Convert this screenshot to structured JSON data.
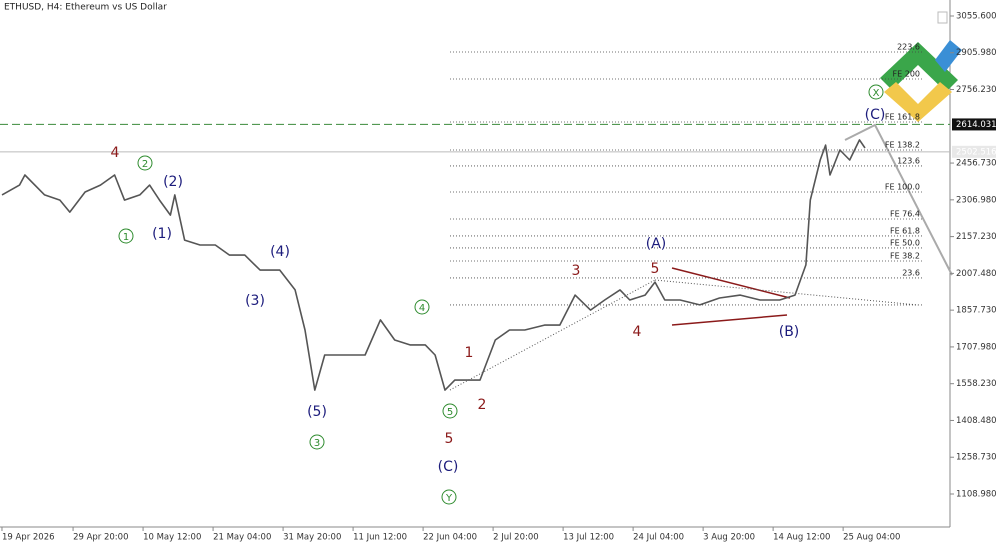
{
  "chart_data": {
    "type": "line",
    "title": "ETHUSD, H4:  Ethereum vs US Dollar",
    "x": [
      0,
      16,
      21,
      39,
      53,
      62,
      76,
      90,
      103,
      112,
      126,
      135,
      144,
      154,
      158,
      167,
      181,
      195,
      208,
      222,
      236,
      254,
      268,
      277,
      286,
      295,
      314,
      332,
      346,
      359,
      373,
      387,
      396,
      405,
      414,
      428,
      437,
      451,
      464,
      478,
      496,
      510,
      524,
      538,
      551,
      565,
      574,
      588,
      597,
      606,
      620,
      638,
      656,
      675,
      693,
      711,
      725,
      735,
      739,
      748,
      753,
      757,
      766,
      775,
      784,
      789
    ],
    "values": [
      2327,
      2367,
      2408,
      2327,
      2306,
      2257,
      2339,
      2367,
      2408,
      2306,
      2327,
      2367,
      2306,
      2245,
      2327,
      2143,
      2123,
      2123,
      2082,
      2082,
      2021,
      2021,
      1940,
      1777,
      1532,
      1675,
      1675,
      1675,
      1818,
      1736,
      1716,
      1716,
      1675,
      1532,
      1573,
      1573,
      1573,
      1736,
      1777,
      1777,
      1797,
      1797,
      1919,
      1858,
      1899,
      1940,
      1899,
      1919,
      1972,
      1899,
      1899,
      1879,
      1907,
      1919,
      1899,
      1899,
      1919,
      2042,
      2306,
      2469,
      2530,
      2408,
      2510,
      2469,
      2551,
      2518
    ],
    "color": "#555555",
    "xlim": [
      -1.8,
      866.7
    ],
    "ylim": [
      974.6,
      3120.8
    ],
    "xticks": [
      {
        "value": 0,
        "label": "19 Apr 2026"
      },
      {
        "value": 65,
        "label": "29 Apr 20:00"
      },
      {
        "value": 129,
        "label": "10 May 12:00"
      },
      {
        "value": 193,
        "label": "21 May 04:00"
      },
      {
        "value": 257,
        "label": "31 May 20:00"
      },
      {
        "value": 321,
        "label": "11 Jun 12:00"
      },
      {
        "value": 385,
        "label": "22 Jun 04:00"
      },
      {
        "value": 449,
        "label": "2 Jul 20:00"
      },
      {
        "value": 513,
        "label": "13 Jul 12:00"
      },
      {
        "value": 577,
        "label": "24 Jul 04:00"
      },
      {
        "value": 641,
        "label": "3 Aug 20:00"
      },
      {
        "value": 705,
        "label": "14 Aug 12:00"
      },
      {
        "value": 769,
        "label": "25 Aug 04:00"
      }
    ],
    "yticks": [
      {
        "value": 3055.6,
        "label": "3055.600"
      },
      {
        "value": 2905.98,
        "label": "2905.980"
      },
      {
        "value": 2756.23,
        "label": "2756.230"
      },
      {
        "value": 2456.73,
        "label": "2456.730"
      },
      {
        "value": 2306.98,
        "label": "2306.980"
      },
      {
        "value": 2157.23,
        "label": "2157.230"
      },
      {
        "value": 2007.48,
        "label": "2007.480"
      },
      {
        "value": 1857.73,
        "label": "1857.730"
      },
      {
        "value": 1707.98,
        "label": "1707.980"
      },
      {
        "value": 1558.23,
        "label": "1558.230"
      },
      {
        "value": 1408.48,
        "label": "1408.480"
      },
      {
        "value": 1258.73,
        "label": "1258.730"
      },
      {
        "value": 1108.98,
        "label": "1108.980"
      }
    ],
    "price_lines": [
      {
        "value": 2614.031,
        "label": "2614.031",
        "color": "#3a8a3a"
      },
      {
        "value": 2502.516,
        "label": "2502.516",
        "color": "#bbbbbb"
      }
    ],
    "fib_levels": [
      {
        "value": 2909,
        "label": "223.6"
      },
      {
        "value": 2799,
        "label": "FE 200"
      },
      {
        "value": 2624,
        "label": "FE 161.8"
      },
      {
        "value": 2510,
        "label": "FE 138.2"
      },
      {
        "value": 2445,
        "label": "123.6"
      },
      {
        "value": 2339,
        "label": "FE 100.0"
      },
      {
        "value": 2229,
        "label": "FE 76.4"
      },
      {
        "value": 2160,
        "label": "FE 61.8"
      },
      {
        "value": 2111,
        "label": "FE 50.0"
      },
      {
        "value": 2058,
        "label": "FE 38.2"
      },
      {
        "value": 1989,
        "label": "23.6"
      },
      {
        "value": 1879,
        "label": null
      }
    ],
    "annotations": [
      {
        "text": "4",
        "color": "#8b1a1a"
      },
      {
        "text": "3",
        "color": "#8b1a1a"
      },
      {
        "text": "5",
        "color": "#8b1a1a"
      },
      {
        "text": "4",
        "color": "#8b1a1a"
      },
      {
        "text": "1",
        "color": "#8b1a1a"
      },
      {
        "text": "2",
        "color": "#8b1a1a"
      },
      {
        "text": "5",
        "color": "#8b1a1a"
      },
      {
        "text": "(2)",
        "color": "#1c1c7c"
      },
      {
        "text": "(1)",
        "color": "#1c1c7c"
      },
      {
        "text": "(4)",
        "color": "#1c1c7c"
      },
      {
        "text": "(3)",
        "color": "#1c1c7c"
      },
      {
        "text": "(5)",
        "color": "#1c1c7c"
      },
      {
        "text": "(A)",
        "color": "#1c1c7c"
      },
      {
        "text": "(B)",
        "color": "#1c1c7c"
      },
      {
        "text": "(C)",
        "color": "#1c1c7c"
      },
      {
        "text": "(C)",
        "color": "#1c1c7c"
      },
      {
        "text": "2",
        "color": "#2e8b2e",
        "circled": true
      },
      {
        "text": "1",
        "color": "#2e8b2e",
        "circled": true
      },
      {
        "text": "4",
        "color": "#2e8b2e",
        "circled": true
      },
      {
        "text": "3",
        "color": "#2e8b2e",
        "circled": true
      },
      {
        "text": "5",
        "color": "#2e8b2e",
        "circled": true
      },
      {
        "text": "Y",
        "color": "#2e8b2e",
        "circled": true
      },
      {
        "text": "X",
        "color": "#2e8b2e",
        "circled": true
      }
    ]
  }
}
